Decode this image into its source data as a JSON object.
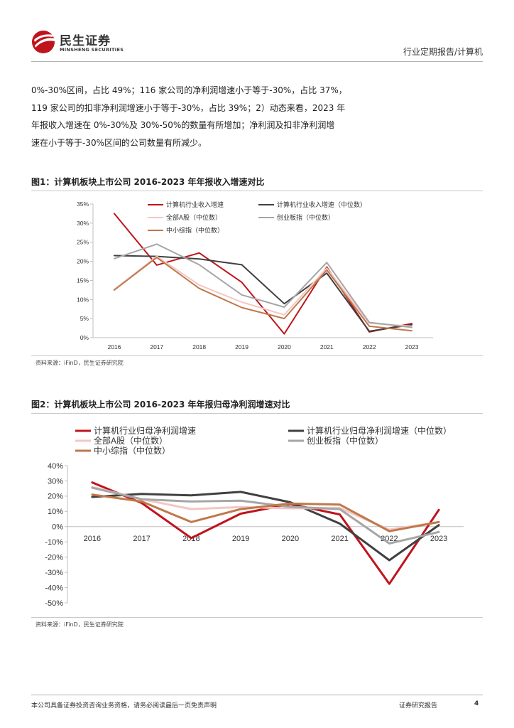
{
  "header": {
    "logo_cn": "民生证券",
    "logo_en": "MINSHENG SECURITIES",
    "section": "行业定期报告/计算机"
  },
  "body_text": [
    "0%-30%区间，占比 49%；116 家公司的净利润增速小于等于-30%，占比 37%，",
    "119 家公司的扣非净利润增速小于等于-30%，占比 39%；2）动态来看，2023 年",
    "年报收入增速在  0%-30%及  30%-50%的数量有所增加；净利润及扣非净利润增",
    "速在小于等于-30%区间的公司数量有所减少。"
  ],
  "figure1": {
    "title": "图1：计算机板块上市公司 2016-2023 年年报收入增速对比",
    "source": "资料来源：iFinD，民生证券研究院"
  },
  "figure2": {
    "title": "图2：计算机板块上市公司 2016-2023 年年报归母净利润增速对比",
    "source": "资料来源：iFinD，民生证券研究院"
  },
  "footer": {
    "disclaimer": "本公司具备证券投资咨询业务资格，请务必阅读最后一页免责声明",
    "report_type": "证券研究报告",
    "page": "4"
  },
  "colors": {
    "red": "#C0141C",
    "dark": "#404040",
    "pink": "#F2C7C4",
    "gray": "#A6A6A6",
    "orange": "#C0784A"
  },
  "chart_data": [
    {
      "type": "line",
      "title": "图1：计算机板块上市公司 2016-2023 年年报收入增速对比",
      "categories": [
        "2016",
        "2017",
        "2018",
        "2019",
        "2020",
        "2021",
        "2022",
        "2023"
      ],
      "ylim": [
        0,
        35
      ],
      "yticks": [
        "0%",
        "5%",
        "10%",
        "15%",
        "20%",
        "25%",
        "30%",
        "35%"
      ],
      "legend": "top",
      "series": [
        {
          "name": "计算机行业收入增速",
          "color": "#C0141C",
          "values": [
            32.5,
            19.0,
            22.2,
            14.5,
            1.0,
            18.5,
            1.5,
            3.7
          ]
        },
        {
          "name": "计算机行业收入增速（中位数）",
          "color": "#404040",
          "values": [
            21.5,
            21.3,
            20.6,
            19.1,
            8.9,
            16.9,
            1.7,
            3.4
          ]
        },
        {
          "name": "全部A股（中位数）",
          "color": "#F2C7C4",
          "values": [
            12.6,
            21.3,
            13.8,
            9.3,
            6.0,
            18.2,
            3.8,
            3.0
          ]
        },
        {
          "name": "创业板指（中位数）",
          "color": "#A6A6A6",
          "values": [
            20.7,
            24.5,
            19.1,
            11.2,
            8.0,
            19.7,
            4.0,
            2.7
          ]
        },
        {
          "name": "中小综指（中位数）",
          "color": "#C0784A",
          "values": [
            12.5,
            21.0,
            12.9,
            7.9,
            5.0,
            17.7,
            3.0,
            1.8
          ]
        }
      ]
    },
    {
      "type": "line",
      "title": "图2：计算机板块上市公司 2016-2023 年年报归母净利润增速对比",
      "categories": [
        "2016",
        "2017",
        "2018",
        "2019",
        "2020",
        "2021",
        "2022",
        "2023"
      ],
      "ylim": [
        -50,
        40
      ],
      "yticks": [
        "-50%",
        "-40%",
        "-30%",
        "-20%",
        "-10%",
        "0%",
        "10%",
        "20%",
        "30%",
        "40%"
      ],
      "legend": "top",
      "series": [
        {
          "name": "计算机行业归母净利润增速",
          "color": "#C0141C",
          "values": [
            29.0,
            15.5,
            -7.5,
            8.5,
            14.8,
            8.0,
            -37.5,
            11.0
          ]
        },
        {
          "name": "计算机行业归母净利润增速（中位数）",
          "color": "#404040",
          "values": [
            19.5,
            21.5,
            20.5,
            22.8,
            16.0,
            2.0,
            -22.0,
            1.0
          ]
        },
        {
          "name": "全部A股（中位数）",
          "color": "#F2C7C4",
          "values": [
            26.0,
            18.0,
            11.5,
            12.8,
            12.0,
            12.2,
            -2.0,
            3.0
          ]
        },
        {
          "name": "创业板指（中位数）",
          "color": "#A6A6A6",
          "values": [
            25.5,
            18.0,
            16.5,
            17.0,
            13.0,
            11.5,
            -11.0,
            -3.5
          ]
        },
        {
          "name": "中小综指（中位数）",
          "color": "#C0784A",
          "values": [
            21.0,
            16.5,
            3.0,
            11.5,
            15.2,
            14.5,
            -3.0,
            3.0
          ]
        }
      ]
    }
  ]
}
